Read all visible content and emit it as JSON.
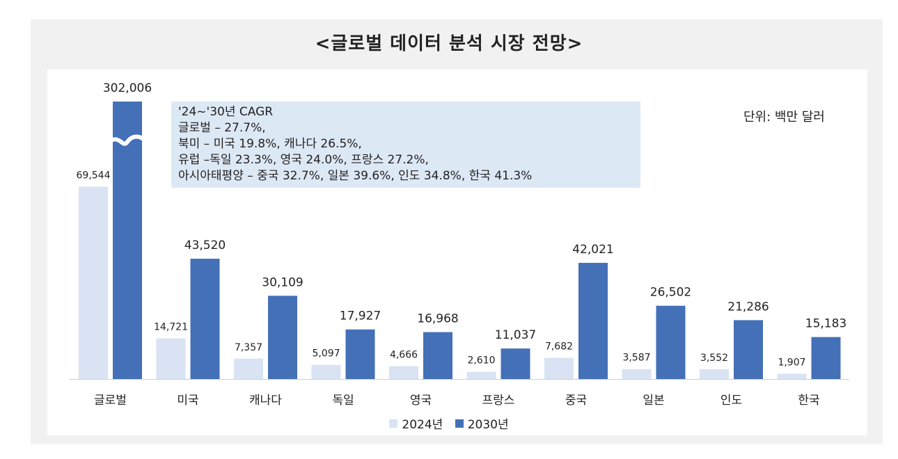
{
  "title": "<글로벌 데이터 분석 시장 전망>",
  "unit_label": "단위: 백만 달러",
  "cagr_box": [
    "'24~'30년 CAGR",
    "글로벌 – 27.7%,",
    "북미 – 미국 19.8%, 캐나다 26.5%,",
    "유럽 –독일 23.3%, 영국 24.0%, 프랑스 27.2%,",
    "아시아태평양 – 중국 32.7%, 일본 39.6%, 인도 34.8%, 한국 41.3%"
  ],
  "colors": {
    "2024": "#d9e3f3",
    "2030": "#4470b8"
  },
  "chart_data": {
    "type": "bar",
    "categories": [
      "글로벌",
      "미국",
      "캐나다",
      "독일",
      "영국",
      "프랑스",
      "중국",
      "일본",
      "인도",
      "한국"
    ],
    "series": [
      {
        "name": "2024년",
        "values": [
          69544,
          14721,
          7357,
          5097,
          4666,
          2610,
          7682,
          3587,
          3552,
          1907
        ],
        "labels": [
          "69,544",
          "14,721",
          "7,357",
          "5,097",
          "4,666",
          "2,610",
          "7,682",
          "3,587",
          "3,552",
          "1,907"
        ]
      },
      {
        "name": "2030년",
        "values": [
          302006,
          43520,
          30109,
          17927,
          16968,
          11037,
          42021,
          26502,
          21286,
          15183
        ],
        "labels": [
          "302,006",
          "43,520",
          "30,109",
          "17,927",
          "16,968",
          "11,037",
          "42,021",
          "26,502",
          "21,286",
          "15,183"
        ]
      }
    ],
    "axis_break": {
      "category": "글로벌",
      "series": "2030년"
    },
    "legend_position": "bottom",
    "grid": false
  }
}
